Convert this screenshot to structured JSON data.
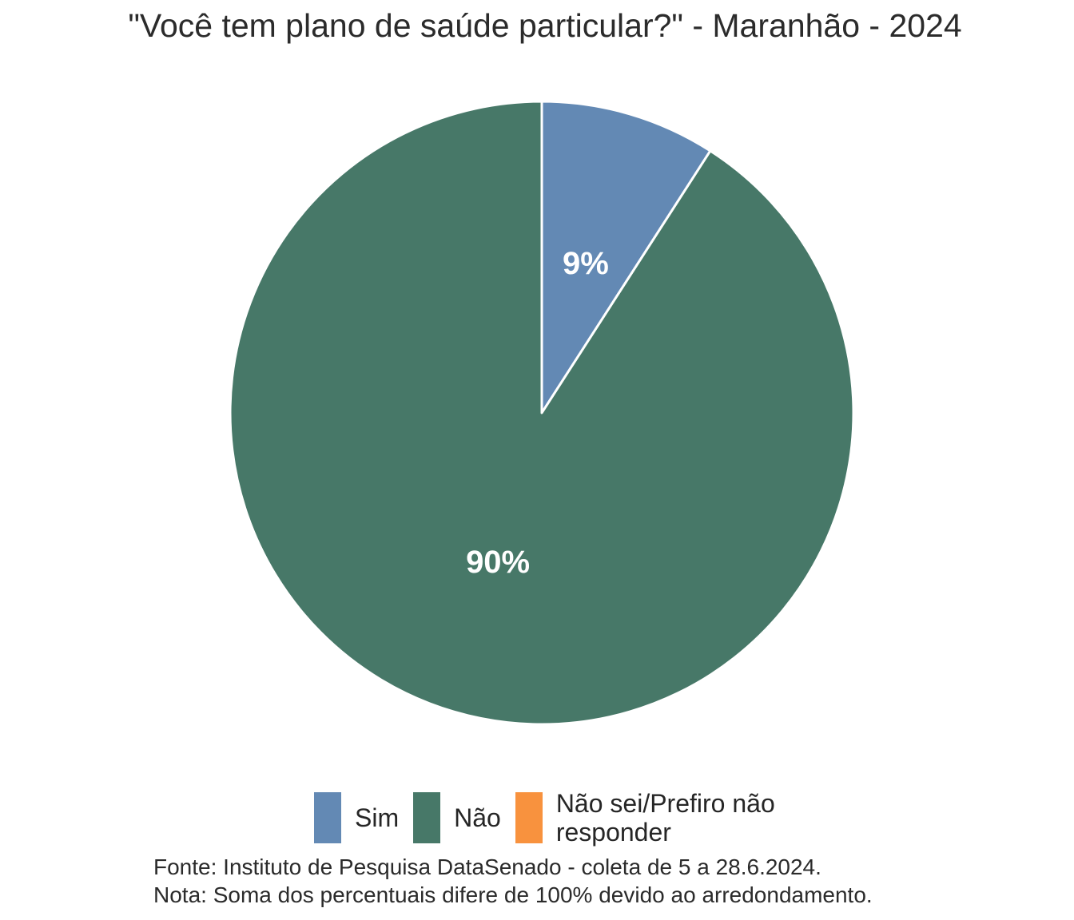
{
  "title": "\"Você tem plano de saúde particular?\" - Maranhão - 2024",
  "chart_data": {
    "type": "pie",
    "title": "\"Você tem plano de saúde particular?\" - Maranhão - 2024",
    "start_angle_deg": 0,
    "direction": "clockwise",
    "background": "#FFFFFF",
    "slice_border_color": "#FFFFFF",
    "slice_label_color": "#FFFFFF",
    "legend_position": "bottom",
    "slices": [
      {
        "id": "sim",
        "label": "Sim",
        "value": 9,
        "display_label": "9%",
        "color": "#6389B4"
      },
      {
        "id": "nao",
        "label": "Não",
        "value": 90,
        "display_label": "90%",
        "color": "#477868"
      },
      {
        "id": "nao-sei-prefiro-nao-responder",
        "label": "Não sei/Prefiro não responder",
        "value": 0,
        "display_label": "",
        "color": "#F8923E"
      }
    ]
  },
  "footer": {
    "fonte": "Fonte: Instituto de Pesquisa DataSenado - coleta de 5 a 28.6.2024.",
    "nota": "Nota: Soma dos percentuais difere de 100% devido ao arredondamento."
  }
}
